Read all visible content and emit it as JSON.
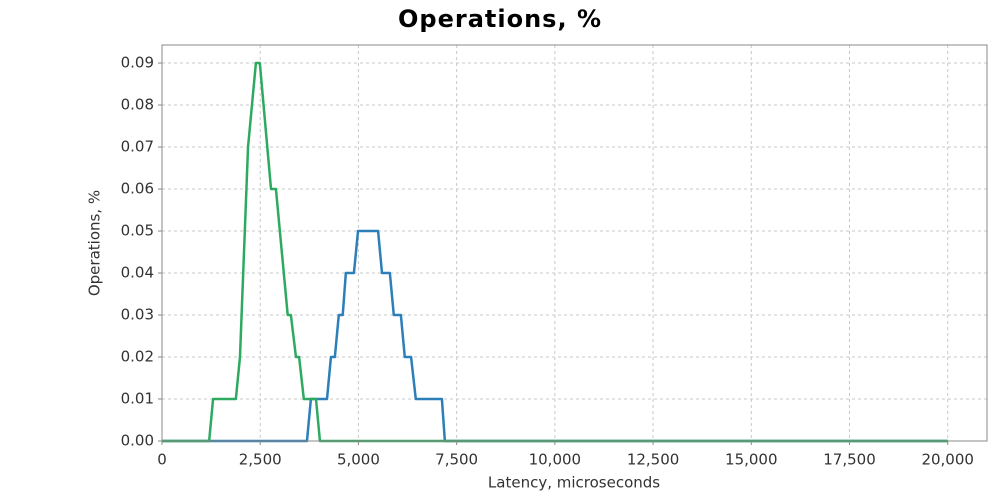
{
  "chart_data": {
    "type": "line",
    "title": "Operations, %",
    "x_label": "Latency, microseconds",
    "y_label": "Operations, %",
    "xlim": [
      0,
      21000
    ],
    "ylim": [
      0,
      0.0943
    ],
    "xticks": [
      0,
      {
        "value": 2500,
        "label": "2,500"
      },
      {
        "value": 5000,
        "label": "5,000"
      },
      {
        "value": 7500,
        "label": "7,500"
      },
      {
        "value": 10000,
        "label": "10,000"
      },
      {
        "value": 12500,
        "label": "12,500"
      },
      {
        "value": 15000,
        "label": "15,000"
      },
      {
        "value": 17500,
        "label": "17,500"
      },
      {
        "value": 20000,
        "label": "20,000"
      }
    ],
    "yticks": [
      {
        "value": 0,
        "label": "0.00"
      },
      {
        "value": 0.01,
        "label": "0.01"
      },
      {
        "value": 0.02,
        "label": "0.02"
      },
      {
        "value": 0.03,
        "label": "0.03"
      },
      {
        "value": 0.04,
        "label": "0.04"
      },
      {
        "value": 0.05,
        "label": "0.05"
      },
      {
        "value": 0.06,
        "label": "0.06"
      },
      {
        "value": 0.07,
        "label": "0.07"
      },
      {
        "value": 0.08,
        "label": "0.08"
      },
      {
        "value": 0.09,
        "label": "0.09"
      }
    ],
    "grid": true,
    "series": [
      {
        "color": "#2c7fb8",
        "x": [
          0,
          3690,
          3790,
          4200,
          4300,
          4400,
          4500,
          4600,
          4680,
          4885,
          4990,
          5500,
          5600,
          5800,
          5900,
          6080,
          6180,
          6340,
          6460,
          7125,
          7200,
          20000
        ],
        "values": [
          0,
          0,
          0.01,
          0.01,
          0.02,
          0.02,
          0.03,
          0.03,
          0.04,
          0.04,
          0.05,
          0.05,
          0.04,
          0.04,
          0.03,
          0.03,
          0.02,
          0.02,
          0.01,
          0.01,
          0,
          0
        ]
      },
      {
        "color": "#2eaa60",
        "x": [
          0,
          1200,
          1300,
          1880,
          1985,
          2190,
          2390,
          2490,
          2775,
          2900,
          3100,
          3200,
          3280,
          3410,
          3490,
          3610,
          3920,
          4020,
          20000
        ],
        "values": [
          0,
          0,
          0.01,
          0.01,
          0.02,
          0.07,
          0.09,
          0.09,
          0.06,
          0.06,
          0.04,
          0.03,
          0.03,
          0.02,
          0.02,
          0.01,
          0.01,
          0,
          0
        ]
      }
    ]
  }
}
